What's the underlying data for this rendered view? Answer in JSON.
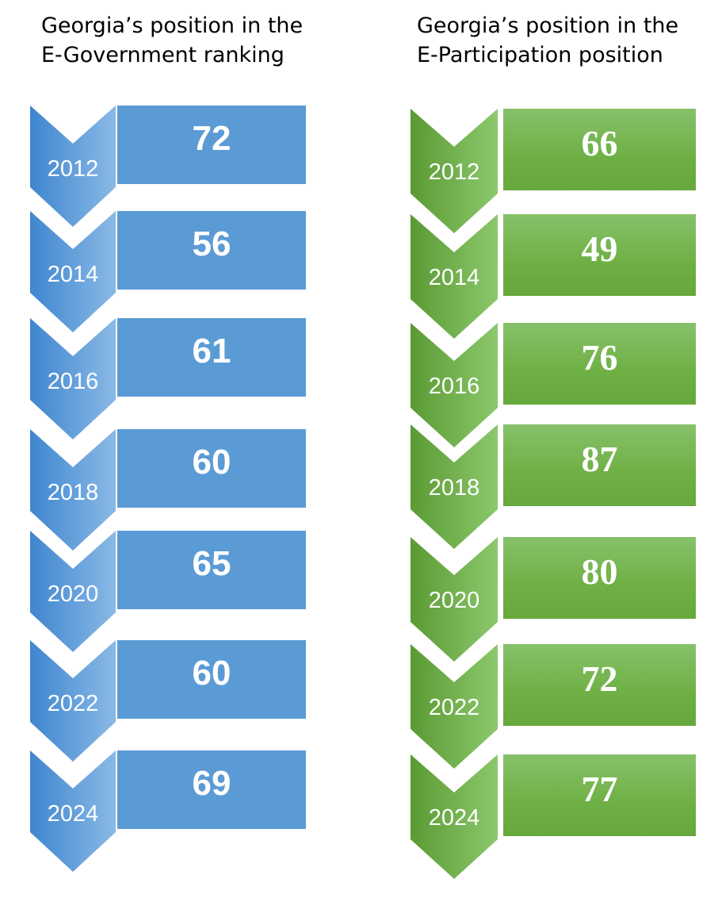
{
  "panels": [
    {
      "title_line1": "Georgia’s position in the",
      "title_line2": "E-Government ranking",
      "color": "#5b9bd5",
      "items": [
        {
          "year": "2012",
          "rank": "72"
        },
        {
          "year": "2014",
          "rank": "56"
        },
        {
          "year": "2016",
          "rank": "61"
        },
        {
          "year": "2018",
          "rank": "60"
        },
        {
          "year": "2020",
          "rank": "65"
        },
        {
          "year": "2022",
          "rank": "60"
        },
        {
          "year": "2024",
          "rank": "69"
        }
      ]
    },
    {
      "title_line1": "Georgia’s position in the",
      "title_line2": "E-Participation position",
      "color": "#70ad47",
      "items": [
        {
          "year": "2012",
          "rank": "66"
        },
        {
          "year": "2014",
          "rank": "49"
        },
        {
          "year": "2016",
          "rank": "76"
        },
        {
          "year": "2018",
          "rank": "87"
        },
        {
          "year": "2020",
          "rank": "80"
        },
        {
          "year": "2022",
          "rank": "72"
        },
        {
          "year": "2024",
          "rank": "77"
        }
      ]
    }
  ]
}
